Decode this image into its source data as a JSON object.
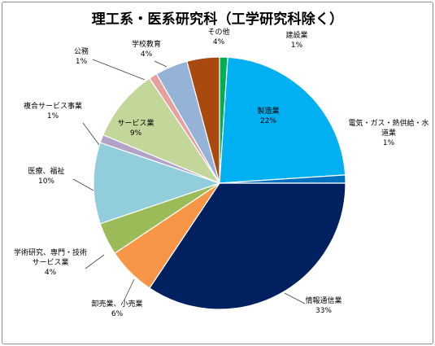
{
  "chart_data": {
    "type": "pie",
    "title": "理工系・医系研究科（工学研究科除く）",
    "start_angle_deg": 0,
    "direction": "clockwise",
    "slices": [
      {
        "name": "建設業",
        "display_name": "建設業",
        "value": 1,
        "label": "1%",
        "color": "#00b050",
        "label_inside": false
      },
      {
        "name": "製造業",
        "display_name": "製造業",
        "value": 22,
        "label": "22%",
        "color": "#00b0f0",
        "label_inside": true
      },
      {
        "name": "電気・ガス・熱供給・水道業",
        "display_name": "電気・ガス・熱供給・水\n道業",
        "value": 1,
        "label": "1%",
        "color": "#0070c0",
        "label_inside": false
      },
      {
        "name": "情報通信業",
        "display_name": "情報通信業",
        "value": 33,
        "label": "33%",
        "color": "#002060",
        "label_inside": false
      },
      {
        "name": "卸売業、小売業",
        "display_name": "卸売業、小売業",
        "value": 6,
        "label": "6%",
        "color": "#f79646",
        "label_inside": false
      },
      {
        "name": "学術研究、専門・技術サービス業",
        "display_name": "学術研究、専門・技術\nサービス業",
        "value": 4,
        "label": "4%",
        "color": "#9bbb59",
        "label_inside": false
      },
      {
        "name": "医療、福祉",
        "display_name": "医療、福祉",
        "value": 10,
        "label": "10%",
        "color": "#92cddc",
        "label_inside": false
      },
      {
        "name": "複合サービス事業",
        "display_name": "複合サービス事業",
        "value": 1,
        "label": "1%",
        "color": "#b3a2c7",
        "label_inside": false
      },
      {
        "name": "サービス業",
        "display_name": "サービス業",
        "value": 9,
        "label": "9%",
        "color": "#c4d79b",
        "label_inside": true
      },
      {
        "name": "公務",
        "display_name": "公務",
        "value": 1,
        "label": "1%",
        "color": "#e6a0a0",
        "label_inside": false
      },
      {
        "name": "学校教育",
        "display_name": "学校教育",
        "value": 4,
        "label": "4%",
        "color": "#95b3d7",
        "label_inside": false
      },
      {
        "name": "その他",
        "display_name": "その他",
        "value": 4,
        "label": "4%",
        "color": "#a9480f",
        "label_inside": false
      }
    ],
    "legend": "none"
  }
}
